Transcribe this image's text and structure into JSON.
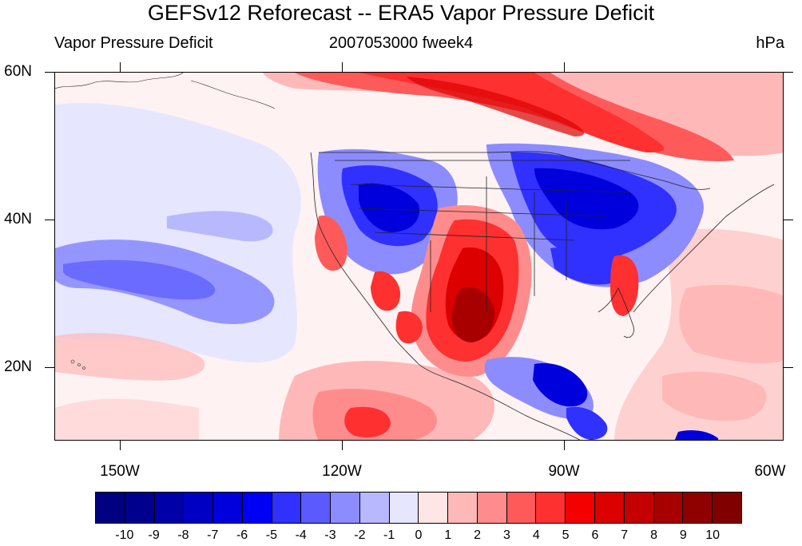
{
  "title": "GEFSv12 Reforecast -- ERA5 Vapor Pressure Deficit",
  "subtitle_left": "Vapor Pressure Deficit",
  "subtitle_center": "2007053000 fweek4",
  "subtitle_right": "hPa",
  "axes": {
    "lat_labels": [
      "60N",
      "40N",
      "20N"
    ],
    "lon_labels": [
      "150W",
      "120W",
      "90W",
      "60W"
    ]
  },
  "colorbar": {
    "labels": [
      "-10",
      "-9",
      "-8",
      "-7",
      "-6",
      "-5",
      "-4",
      "-3",
      "-2",
      "-1",
      "0",
      "1",
      "2",
      "3",
      "4",
      "5",
      "6",
      "7",
      "8",
      "9",
      "10"
    ],
    "colors": [
      "#000080",
      "#00008f",
      "#0000a8",
      "#0000c4",
      "#0000dc",
      "#0000f5",
      "#3030ff",
      "#5a5aff",
      "#8c8cff",
      "#b8b8ff",
      "#e6e6ff",
      "#ffe6e6",
      "#ffb8b8",
      "#ff8c8c",
      "#ff5a5a",
      "#ff3030",
      "#f50000",
      "#dc0000",
      "#c40000",
      "#a80000",
      "#8f0000",
      "#800000"
    ]
  },
  "colors": {
    "background": "#fff2f2",
    "light_blue": "#e6e6ff",
    "blue": "#8c8cff",
    "dark_blue": "#0000dc",
    "light_red": "#ffb8b8",
    "red": "#ff3030",
    "dark_red": "#a80000"
  }
}
